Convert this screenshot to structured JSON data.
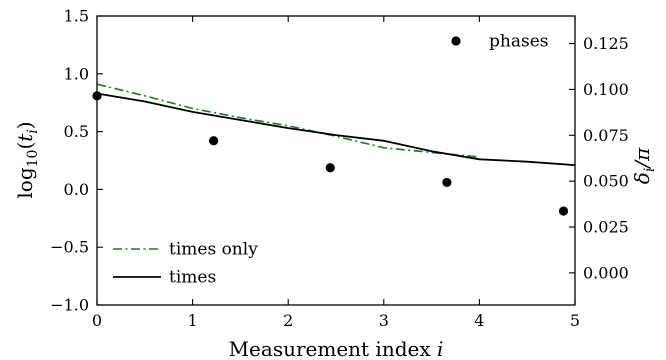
{
  "chart_data": {
    "type": "line",
    "xlabel": "Measurement index $i$",
    "xlabel_parts": [
      "Measurement index ",
      "i"
    ],
    "ylabel_left_parts": [
      "log",
      "10",
      "(",
      "t",
      "i",
      ")"
    ],
    "ylabel_right_parts": [
      "δ",
      "i",
      "/π"
    ],
    "xlim": [
      0,
      5
    ],
    "ylim": [
      -1.0,
      1.5
    ],
    "ylim_right": [
      -0.0175,
      0.14
    ],
    "x_ticks": [
      0,
      1,
      2,
      3,
      4,
      5
    ],
    "x_tick_labels": [
      "0",
      "1",
      "2",
      "3",
      "4",
      "5"
    ],
    "y_ticks": [
      -1.0,
      -0.5,
      0.0,
      0.5,
      1.0,
      1.5
    ],
    "y_tick_labels": [
      "−1.0",
      "−0.5",
      "0.0",
      "0.5",
      "1.0",
      "1.5"
    ],
    "y_right_ticks": [
      0.0,
      0.025,
      0.05,
      0.075,
      0.1,
      0.125
    ],
    "y_right_tick_labels": [
      "0.000",
      "0.025",
      "0.050",
      "0.075",
      "0.100",
      "0.125"
    ],
    "grid": false,
    "series": [
      {
        "name": "times only",
        "style": "dashdot",
        "color": "#1f7a1f",
        "axis": "left",
        "x": [
          0,
          0.5,
          1.0,
          1.5,
          2.0,
          2.5,
          3.0,
          3.5,
          4.0
        ],
        "y": [
          0.91,
          0.81,
          0.7,
          0.62,
          0.55,
          0.46,
          0.36,
          0.32,
          0.28
        ]
      },
      {
        "name": "times",
        "style": "solid",
        "color": "#000000",
        "axis": "left",
        "x": [
          0,
          0.5,
          1.0,
          1.5,
          2.0,
          2.5,
          3.0,
          3.5,
          4.0,
          4.5,
          5.0
        ],
        "y": [
          0.83,
          0.76,
          0.67,
          0.6,
          0.53,
          0.47,
          0.42,
          0.33,
          0.26,
          0.24,
          0.21
        ]
      },
      {
        "name": "phases",
        "style": "markers",
        "color": "#000000",
        "axis": "right",
        "x": [
          0,
          1.22,
          2.44,
          3.66,
          4.88
        ],
        "y": [
          0.0965,
          0.072,
          0.0573,
          0.0493,
          0.0337
        ]
      }
    ],
    "legend_lower_left": [
      "times only",
      "times"
    ],
    "legend_upper_right": [
      "phases"
    ]
  }
}
